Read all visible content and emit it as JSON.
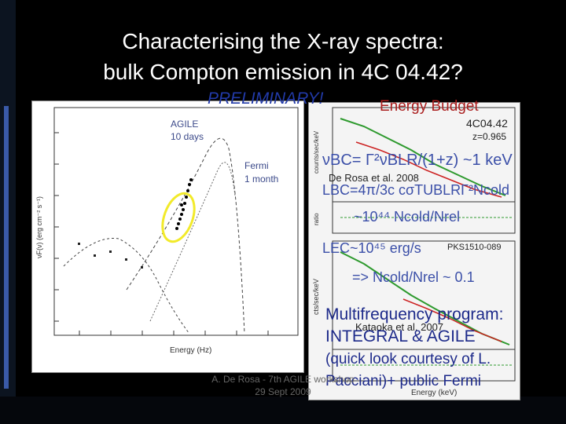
{
  "title": {
    "line1": "Characterising the X-ray spectra:",
    "line2": "bulk Compton emission in 4C 04.42?"
  },
  "preliminary": "PRELIMINARY!",
  "energy_budget": "Energy Budget",
  "left_plot": {
    "agile": "AGILE",
    "agile_days": "10 days",
    "fermi": "Fermi",
    "fermi_month": "1 month",
    "xlabel": "Energy (Hz)",
    "ylabel": "νF(ν) (erg cm⁻² s⁻¹)"
  },
  "right_plot": {
    "source1": "4C04.42",
    "redshift": "z=0.965",
    "source2": "PKS1510-089",
    "ylabel_top": "counts/sec/keV",
    "ylabel_bot": "cts/sec/keV",
    "xlabel": "Energy (keV)",
    "ratio": "ratio"
  },
  "overlay": {
    "eq1": "νBC= Γ²νBLR/(1+z) ~1 keV",
    "derosa": "De Rosa et al. 2008",
    "eq2": "LBC=4π/3c cσTUBLRΓ²Ncold",
    "eq3": "~10⁴⁴ Ncold/Nrel",
    "eq4": "LEC~10⁴⁵ erg/s",
    "eq5": "=> Ncold/Nrel ~ 0.1",
    "multi": "Multifrequency program:",
    "kataoka": "Kataoka et al. 2007",
    "integral": "INTEGRAL & AGILE",
    "quick": "(quick look courtesy of L.",
    "pacciani": "Pacciani)+ public Fermi"
  },
  "footer": {
    "line1": "A. De Rosa - 7th AGILE workshop",
    "line2": "29 Sept 2009"
  },
  "colors": {
    "highlight_ellipse": "#f2ea2a",
    "data_green": "#2e9a2e",
    "data_red": "#cc2222"
  }
}
